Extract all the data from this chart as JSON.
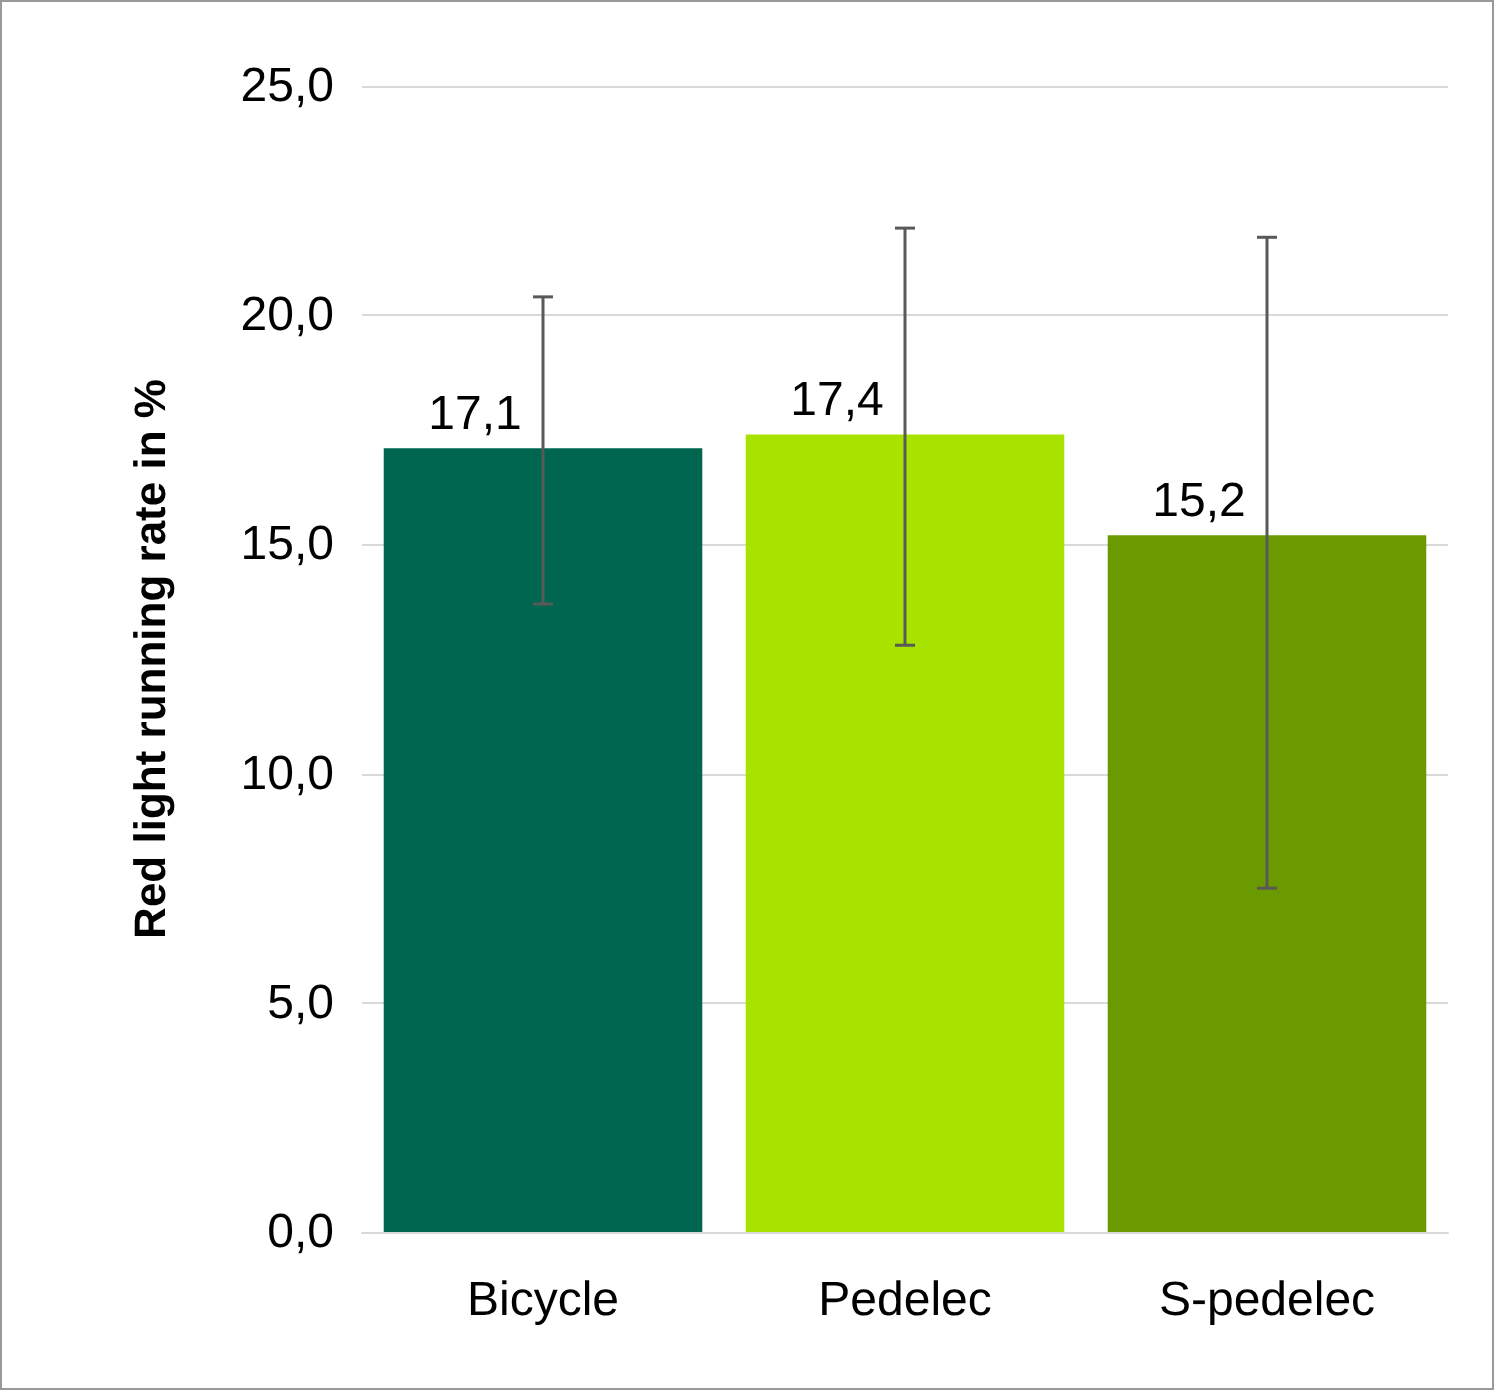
{
  "chart_data": {
    "type": "bar",
    "ylabel": "Red light running rate in %",
    "categories": [
      "Bicycle",
      "Pedelec",
      "S-pedelec"
    ],
    "values": [
      17.1,
      17.4,
      15.2
    ],
    "colors": [
      "#00664f",
      "#a8e300",
      "#6b9a00"
    ],
    "errors": [
      [
        13.7,
        20.4
      ],
      [
        12.8,
        21.9
      ],
      [
        7.5,
        21.7
      ]
    ],
    "value_labels": [
      "17,1",
      "17,4",
      "15,2"
    ],
    "ylim": [
      0,
      25
    ],
    "yticks": [
      {
        "value": 0,
        "label": "0,0"
      },
      {
        "value": 5,
        "label": "5,0"
      },
      {
        "value": 10,
        "label": "10,0"
      },
      {
        "value": 15,
        "label": "15,0"
      },
      {
        "value": 20,
        "label": "20,0"
      },
      {
        "value": 25,
        "label": "25,0"
      }
    ],
    "grid": "y"
  }
}
